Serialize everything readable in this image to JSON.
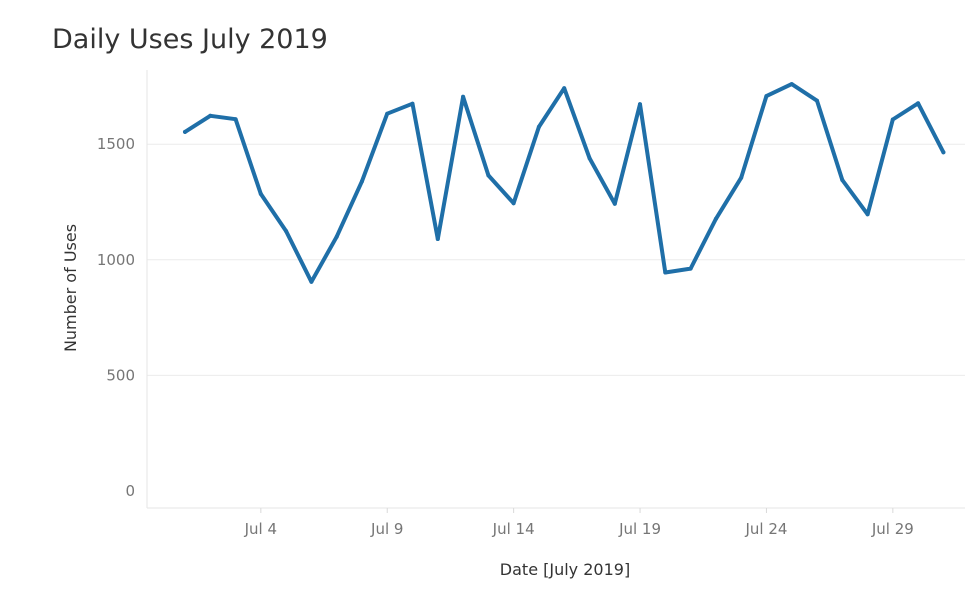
{
  "chart_data": {
    "type": "line",
    "title": "Daily Uses July 2019",
    "xlabel": "Date [July 2019]",
    "ylabel": "Number of Uses",
    "x_tick_labels": [
      "Jul 4",
      "Jul 9",
      "Jul 14",
      "Jul 19",
      "Jul 24",
      "Jul 29"
    ],
    "x_tick_days": [
      4,
      9,
      14,
      19,
      24,
      29
    ],
    "y_tick_labels": [
      "0",
      "500",
      "1000",
      "1500"
    ],
    "y_ticks": [
      0,
      500,
      1000,
      1500
    ],
    "ylim": [
      0,
      1850
    ],
    "xlim": [
      "2019-07-01",
      "2019-07-31"
    ],
    "grid": "horizontal",
    "line_color": "#1f6fa8",
    "gridline_color": "#ececec",
    "series": [
      {
        "x": [
          "2019-07-01",
          "2019-07-02",
          "2019-07-03",
          "2019-07-04",
          "2019-07-05",
          "2019-07-06",
          "2019-07-07",
          "2019-07-08",
          "2019-07-09",
          "2019-07-10",
          "2019-07-11",
          "2019-07-12",
          "2019-07-13",
          "2019-07-14",
          "2019-07-15",
          "2019-07-16",
          "2019-07-17",
          "2019-07-18",
          "2019-07-19",
          "2019-07-20",
          "2019-07-21",
          "2019-07-22",
          "2019-07-23",
          "2019-07-24",
          "2019-07-25",
          "2019-07-26",
          "2019-07-27",
          "2019-07-28",
          "2019-07-29",
          "2019-07-30",
          "2019-07-31"
        ],
        "values": [
          1553,
          1623,
          1608,
          1285,
          1124,
          905,
          1100,
          1340,
          1632,
          1675,
          1090,
          1705,
          1365,
          1245,
          1575,
          1742,
          1440,
          1242,
          1673,
          945,
          962,
          1177,
          1355,
          1708,
          1760,
          1688,
          1345,
          1197,
          1607,
          1677,
          1465
        ]
      }
    ]
  }
}
